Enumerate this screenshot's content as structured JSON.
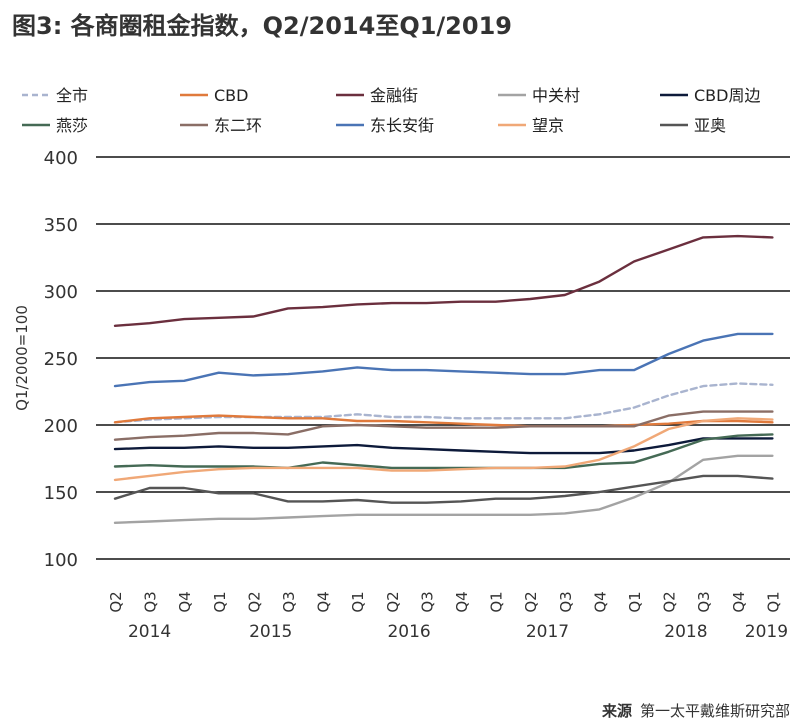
{
  "page": {
    "title": "图3: 各商圈租金指数，Q2/2014至Q1/2019",
    "source_label": "来源",
    "source_text": "第一太平戴维斯研究部"
  },
  "chart_data": {
    "type": "line",
    "title": "图3: 各商圈租金指数，Q2/2014至Q1/2019",
    "ylabel": "Q1/2000=100",
    "xlabel": "",
    "ylim": [
      100,
      400
    ],
    "yticks": [
      100,
      150,
      200,
      250,
      300,
      350,
      400
    ],
    "grid": true,
    "legend_position": "top",
    "categories": [
      "Q2",
      "Q3",
      "Q4",
      "Q1",
      "Q2",
      "Q3",
      "Q4",
      "Q1",
      "Q2",
      "Q3",
      "Q4",
      "Q1",
      "Q2",
      "Q3",
      "Q4",
      "Q1",
      "Q2",
      "Q3",
      "Q4",
      "Q1"
    ],
    "years": [
      {
        "label": "2014",
        "from": 0,
        "to": 2
      },
      {
        "label": "2015",
        "from": 3,
        "to": 6
      },
      {
        "label": "2016",
        "from": 7,
        "to": 10
      },
      {
        "label": "2017",
        "from": 11,
        "to": 14
      },
      {
        "label": "2018",
        "from": 15,
        "to": 18
      },
      {
        "label": "2019",
        "from": 19,
        "to": 19
      }
    ],
    "series": [
      {
        "name": "全市",
        "color": "#a9b4cf",
        "dash": true,
        "values": [
          202,
          204,
          205,
          206,
          206,
          206,
          206,
          208,
          206,
          206,
          205,
          205,
          205,
          205,
          208,
          213,
          222,
          229,
          231,
          230
        ]
      },
      {
        "name": "CBD",
        "color": "#e07a3c",
        "dash": false,
        "values": [
          202,
          205,
          206,
          207,
          206,
          205,
          205,
          203,
          203,
          202,
          201,
          200,
          199,
          199,
          199,
          200,
          201,
          203,
          203,
          202
        ]
      },
      {
        "name": "金融街",
        "color": "#6b2f3e",
        "dash": false,
        "values": [
          274,
          276,
          279,
          280,
          281,
          287,
          288,
          290,
          291,
          291,
          292,
          292,
          294,
          297,
          307,
          322,
          331,
          340,
          341,
          340
        ]
      },
      {
        "name": "中关村",
        "color": "#a3a3a3",
        "dash": false,
        "values": [
          127,
          128,
          129,
          130,
          130,
          131,
          132,
          133,
          133,
          133,
          133,
          133,
          133,
          134,
          137,
          146,
          157,
          174,
          177,
          177
        ]
      },
      {
        "name": "CBD周边",
        "color": "#0d1a3a",
        "dash": false,
        "values": [
          182,
          183,
          183,
          184,
          183,
          183,
          184,
          185,
          183,
          182,
          181,
          180,
          179,
          179,
          179,
          181,
          185,
          190,
          190,
          190
        ]
      },
      {
        "name": "燕莎",
        "color": "#456a55",
        "dash": false,
        "values": [
          169,
          170,
          169,
          169,
          169,
          168,
          172,
          170,
          168,
          168,
          168,
          168,
          168,
          168,
          171,
          172,
          180,
          189,
          192,
          193
        ]
      },
      {
        "name": "东二环",
        "color": "#8a6e66",
        "dash": false,
        "values": [
          189,
          191,
          192,
          194,
          194,
          193,
          199,
          200,
          199,
          198,
          198,
          198,
          199,
          199,
          199,
          199,
          207,
          210,
          210,
          210
        ]
      },
      {
        "name": "东长安街",
        "color": "#4a74b5",
        "dash": false,
        "values": [
          229,
          232,
          233,
          239,
          237,
          238,
          240,
          243,
          241,
          241,
          240,
          239,
          238,
          238,
          241,
          241,
          253,
          263,
          268,
          268
        ]
      },
      {
        "name": "望京",
        "color": "#f0a877",
        "dash": false,
        "values": [
          159,
          162,
          165,
          167,
          168,
          168,
          168,
          168,
          166,
          166,
          167,
          168,
          168,
          169,
          174,
          184,
          197,
          203,
          205,
          204
        ]
      },
      {
        "name": "亚奥",
        "color": "#555555",
        "dash": false,
        "values": [
          145,
          153,
          153,
          149,
          149,
          143,
          143,
          144,
          142,
          142,
          143,
          145,
          145,
          147,
          150,
          154,
          158,
          162,
          162,
          160
        ]
      }
    ]
  }
}
